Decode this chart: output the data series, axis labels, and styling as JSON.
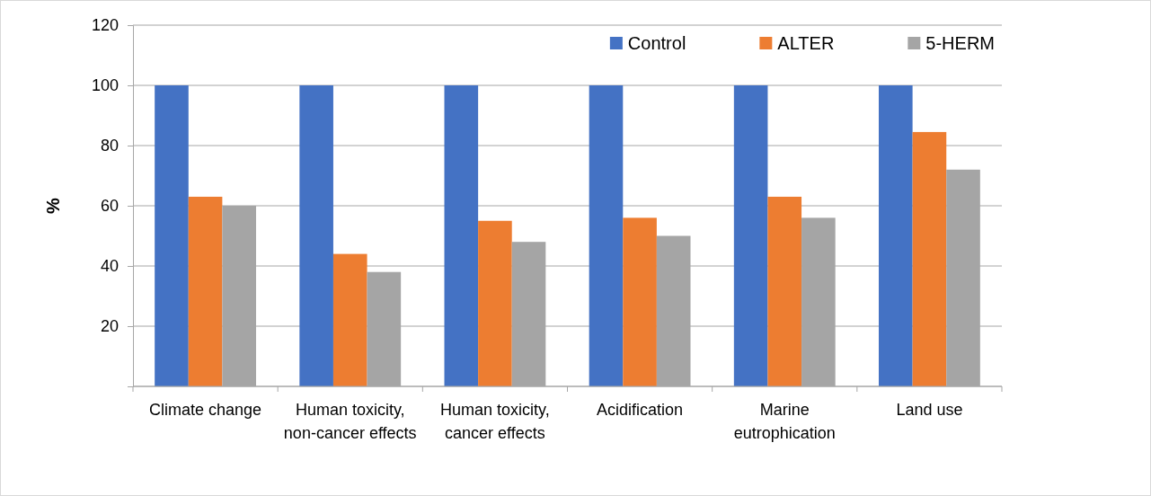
{
  "chart_data": {
    "type": "bar",
    "ylabel": "%",
    "categories": [
      "Climate change",
      "Human toxicity, non-cancer effects",
      "Human toxicity, cancer effects",
      "Acidification",
      "Marine eutrophication",
      "Land use"
    ],
    "series": [
      {
        "name": "Control",
        "color": "#4472c4",
        "values": [
          100,
          100,
          100,
          100,
          100,
          100
        ]
      },
      {
        "name": "ALTER",
        "color": "#ed7d31",
        "values": [
          63,
          44,
          55,
          56,
          63,
          84.5
        ]
      },
      {
        "name": "5-HERM",
        "color": "#a5a5a5",
        "values": [
          60,
          38,
          48,
          50,
          56,
          72
        ]
      }
    ],
    "ylim": [
      0,
      120
    ],
    "yticks": [
      {
        "value": 0,
        "label": null
      },
      20,
      40,
      60,
      80,
      100,
      120
    ],
    "grid": "y",
    "legend": "top right"
  }
}
